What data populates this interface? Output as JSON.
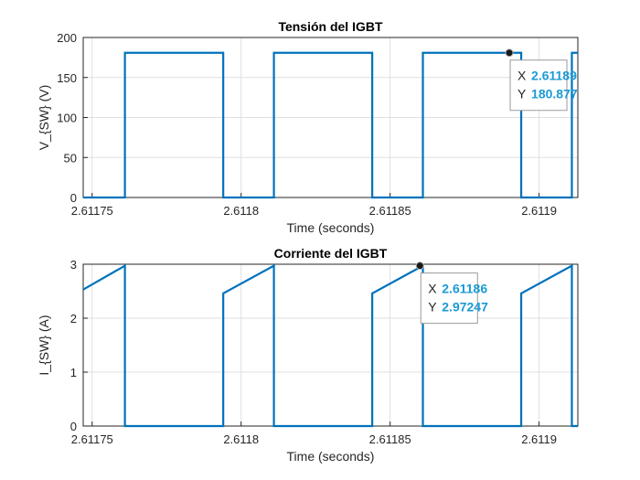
{
  "colors": {
    "trace": "#0072bd",
    "datatip_value": "#1c9ad6",
    "grid": "#dfdfdf"
  },
  "chart_data": [
    {
      "type": "line",
      "title": "Tensión del IGBT",
      "xlabel": "Time (seconds)",
      "ylabel": "V_{SW} (V)",
      "xlim": [
        2.611747,
        2.611913
      ],
      "ylim": [
        0,
        200
      ],
      "xticks": [
        2.61175,
        2.6118,
        2.61185,
        2.6119
      ],
      "xtick_labels": [
        "2.61175",
        "2.6118",
        "2.61185",
        "2.6119"
      ],
      "yticks": [
        0,
        50,
        100,
        150,
        200
      ],
      "ytick_labels": [
        "0",
        "50",
        "100",
        "150",
        "200"
      ],
      "grid": true,
      "series": [
        {
          "x": [
            2.611747,
            2.611761,
            2.611761,
            2.611794,
            2.611794,
            2.611811,
            2.611811,
            2.611844,
            2.611844,
            2.611861,
            2.611861,
            2.611894,
            2.611894,
            2.611911,
            2.611911,
            2.611913
          ],
          "y": [
            0,
            0,
            180.877,
            180.877,
            0,
            0,
            180.877,
            180.877,
            0,
            0,
            180.877,
            180.877,
            0,
            0,
            180.877,
            180.877
          ]
        }
      ],
      "datatip": {
        "x_key": "X",
        "x_value": "2.61189",
        "y_key": "Y",
        "y_value": "180.877",
        "x": 2.61189,
        "y": 180.877
      }
    },
    {
      "type": "line",
      "title": "Corriente del IGBT",
      "xlabel": "Time (seconds)",
      "ylabel": "I_{SW} (A)",
      "xlim": [
        2.611747,
        2.611913
      ],
      "ylim": [
        0,
        3
      ],
      "xticks": [
        2.61175,
        2.6118,
        2.61185,
        2.6119
      ],
      "xtick_labels": [
        "2.61175",
        "2.6118",
        "2.61185",
        "2.6119"
      ],
      "yticks": [
        0,
        1,
        2,
        3
      ],
      "ytick_labels": [
        "0",
        "1",
        "2",
        "3"
      ],
      "grid": true,
      "series": [
        {
          "x": [
            2.611747,
            2.611761,
            2.611761,
            2.611794,
            2.611794,
            2.611811,
            2.611811,
            2.611844,
            2.611844,
            2.611861,
            2.611861,
            2.611894,
            2.611894,
            2.611911,
            2.611911,
            2.611913
          ],
          "y": [
            2.53,
            2.97247,
            0,
            0,
            2.46,
            2.97247,
            0,
            0,
            2.46,
            2.97247,
            0,
            0,
            2.46,
            2.97247,
            0,
            0
          ]
        }
      ],
      "datatip": {
        "x_key": "X",
        "x_value": "2.61186",
        "y_key": "Y",
        "y_value": "2.97247",
        "x": 2.61186,
        "y": 2.97247
      }
    }
  ]
}
